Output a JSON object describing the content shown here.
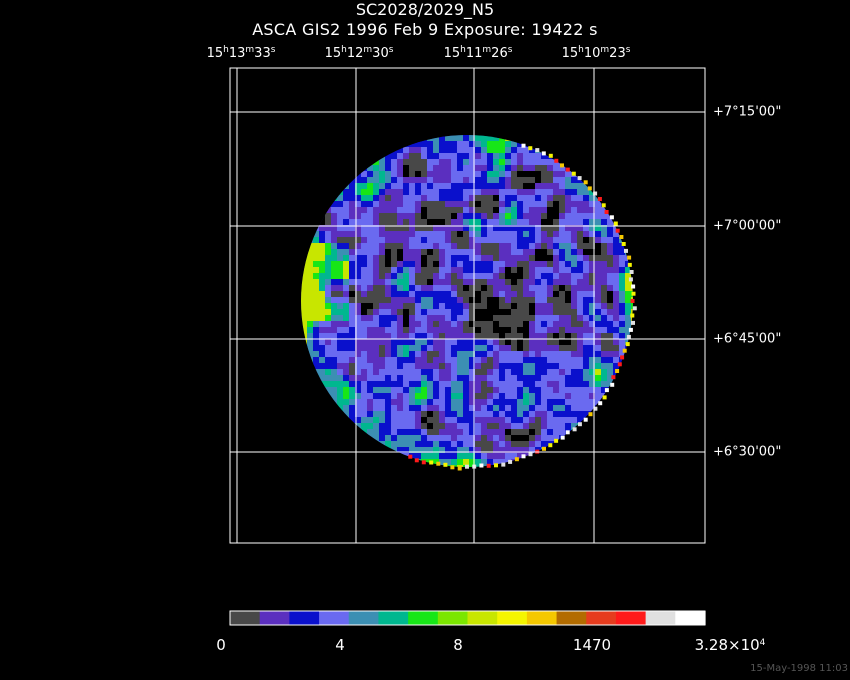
{
  "title": {
    "line1": "SC2028/2029_N5",
    "line2": "ASCA GIS2   1996 Feb  9   Exposure: 19422 s"
  },
  "ra_labels": [
    {
      "h": "15",
      "m": "13",
      "s": "33"
    },
    {
      "h": "15",
      "m": "12",
      "s": "30"
    },
    {
      "h": "15",
      "m": "11",
      "s": "26"
    },
    {
      "h": "15",
      "m": "10",
      "s": "23"
    }
  ],
  "dec_labels": [
    "+7°15'00\"",
    "+7°00'00\"",
    "+6°45'00\"",
    "+6°30'00\""
  ],
  "colorbar": {
    "colors": [
      "#484848",
      "#5b2fbf",
      "#0a10cc",
      "#6a6af0",
      "#3c8fb3",
      "#00b78f",
      "#17e617",
      "#7be600",
      "#c8e600",
      "#f5f500",
      "#f5c800",
      "#b36c00",
      "#e63c1e",
      "#ff1a1a",
      "#e0e0e0",
      "#ffffff"
    ],
    "labels": [
      {
        "text": "0"
      },
      {
        "text": "4"
      },
      {
        "text": "8"
      },
      {
        "text": "1470"
      },
      {
        "text": "3.28×10",
        "sup": "4"
      }
    ]
  },
  "timestamp": "15-May-1998 11:03"
}
